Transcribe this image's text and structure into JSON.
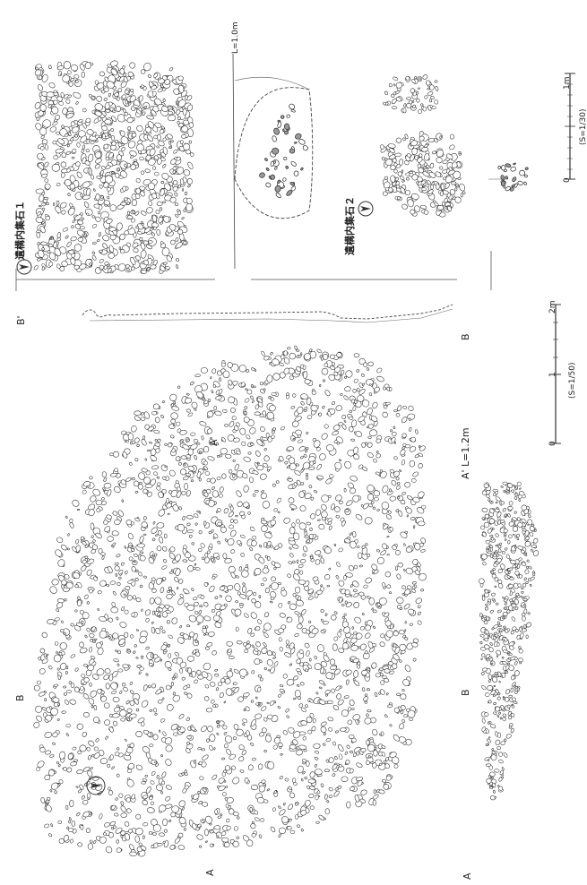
{
  "feature_labels": {
    "cluster_1": "遺構内集石１",
    "cluster_2": "遺構内集石２"
  },
  "section_labels": {
    "a": "A",
    "a_prime": "A'",
    "b": "B",
    "b_prime": "B'",
    "a_prime_level": "A'  L=1.2m",
    "cluster_1_level": "L=1.0m"
  },
  "scales": {
    "large": {
      "ticks": [
        "0",
        "1",
        "2m"
      ],
      "ratio": "(S=1/50)"
    },
    "small": {
      "ticks": [
        "0",
        "1m"
      ],
      "ratio": "(S=1/30)"
    }
  },
  "north_arrows": 3
}
